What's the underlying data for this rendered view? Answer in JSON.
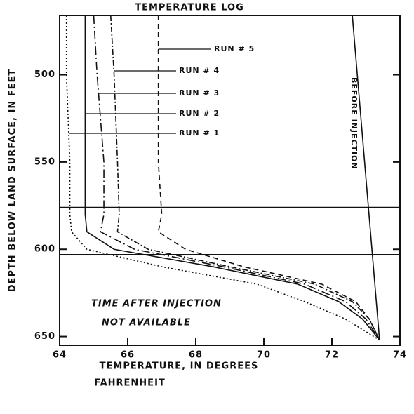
{
  "chart_data": {
    "type": "line",
    "title": "TEMPERATURE LOG",
    "xlabel": [
      "TEMPERATURE, IN DEGREES",
      "FAHRENHEIT"
    ],
    "ylabel": "DEPTH BELOW LAND SURFACE, IN FEET",
    "annotations": [
      "TIME AFTER INJECTION",
      "NOT AVAILABLE"
    ],
    "xlim": [
      64,
      74
    ],
    "xticks": [
      64,
      66,
      68,
      70,
      72,
      74
    ],
    "ylim": [
      466,
      655
    ],
    "yticks": [
      500,
      550,
      600,
      650
    ],
    "y_inverted": true,
    "hlines": [
      576,
      603
    ],
    "series": [
      {
        "name": "RUN # 1",
        "color": "#111",
        "dash": "2,3",
        "x": [
          64.2,
          64.2,
          64.3,
          64.3,
          64.35,
          64.8,
          67,
          69.8,
          71.2,
          72.4,
          73.4
        ],
        "y": [
          466,
          500,
          550,
          580,
          590,
          600,
          610,
          620,
          630,
          640,
          652
        ]
      },
      {
        "name": "RUN # 2",
        "color": "#111",
        "dash": "none",
        "x": [
          64.75,
          64.75,
          64.75,
          64.75,
          64.8,
          65.6,
          68.5,
          71,
          72.2,
          72.9,
          73.4
        ],
        "y": [
          466,
          500,
          550,
          580,
          590,
          600,
          610,
          620,
          630,
          640,
          652
        ]
      },
      {
        "name": "RUN # 3",
        "color": "#111",
        "dash": "12,4,2,4",
        "x": [
          65.0,
          65.1,
          65.3,
          65.3,
          65.2,
          66.2,
          68.8,
          71.2,
          72.4,
          73.0,
          73.4
        ],
        "y": [
          466,
          500,
          550,
          580,
          590,
          600,
          610,
          620,
          630,
          640,
          652
        ]
      },
      {
        "name": "RUN # 4",
        "color": "#111",
        "dash": "8,3,2,3",
        "x": [
          65.5,
          65.6,
          65.7,
          65.75,
          65.7,
          66.6,
          69.0,
          71.5,
          72.6,
          73.1,
          73.4
        ],
        "y": [
          466,
          500,
          550,
          580,
          590,
          600,
          610,
          620,
          630,
          640,
          652
        ]
      },
      {
        "name": "RUN # 5",
        "color": "#111",
        "dash": "7,5",
        "x": [
          66.9,
          66.9,
          66.9,
          67.0,
          66.9,
          67.7,
          69.4,
          71.7,
          72.7,
          73.1,
          73.4
        ],
        "y": [
          466,
          500,
          550,
          580,
          590,
          600,
          610,
          620,
          630,
          640,
          652
        ]
      },
      {
        "name": "BEFORE INJECTION",
        "color": "#111",
        "dash": "none",
        "x": [
          72.6,
          73.4
        ],
        "y": [
          466,
          652
        ]
      }
    ]
  }
}
